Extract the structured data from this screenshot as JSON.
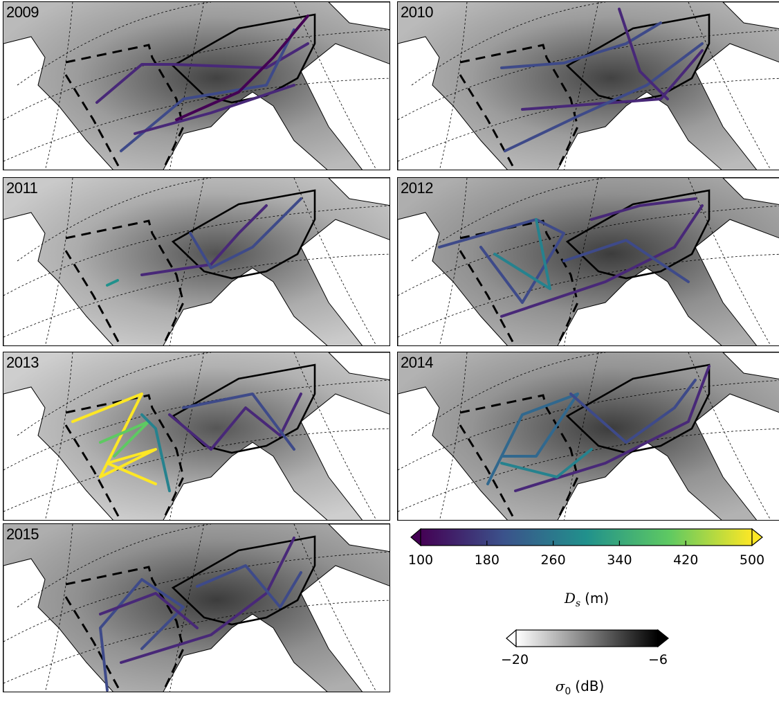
{
  "panels": [
    {
      "year": "2009",
      "tone": 0.55
    },
    {
      "year": "2010",
      "tone": 0.55
    },
    {
      "year": "2011",
      "tone": 0.35
    },
    {
      "year": "2012",
      "tone": 0.7
    },
    {
      "year": "2013",
      "tone": 0.3
    },
    {
      "year": "2014",
      "tone": 0.65
    },
    {
      "year": "2015",
      "tone": 0.7
    }
  ],
  "colorbar_ds": {
    "ticks": [
      "100",
      "180",
      "260",
      "340",
      "420",
      "500"
    ],
    "label_var": "D",
    "label_sub": "s",
    "label_unit": "(m)",
    "colors": [
      "#440154",
      "#3b528b",
      "#21918c",
      "#5ec962",
      "#fde725"
    ]
  },
  "colorbar_sigma": {
    "ticks": [
      "−20",
      "−6"
    ],
    "label_var": "σ",
    "label_sub": "0",
    "label_unit": "(dB)"
  },
  "tracks": [
    [
      [
        [
          135,
          145
        ],
        [
          200,
          90
        ],
        [
          245,
          90
        ],
        [
          380,
          95
        ],
        [
          440,
          60
        ]
      ],
      [
        [
          170,
          215
        ],
        [
          260,
          140
        ],
        [
          380,
          120
        ],
        [
          420,
          40
        ]
      ],
      [
        [
          190,
          190
        ],
        [
          300,
          160
        ],
        [
          420,
          120
        ]
      ],
      [
        [
          250,
          170
        ],
        [
          340,
          130
        ],
        [
          390,
          80
        ],
        [
          440,
          20
        ]
      ]
    ],
    [
      [
        [
          150,
          95
        ],
        [
          240,
          88
        ],
        [
          330,
          60
        ],
        [
          380,
          30
        ]
      ],
      [
        [
          180,
          155
        ],
        [
          380,
          140
        ],
        [
          440,
          70
        ]
      ],
      [
        [
          155,
          215
        ],
        [
          260,
          165
        ],
        [
          360,
          120
        ],
        [
          440,
          60
        ]
      ],
      [
        [
          320,
          10
        ],
        [
          350,
          100
        ],
        [
          390,
          140
        ]
      ]
    ],
    [
      [
        [
          200,
          140
        ],
        [
          300,
          125
        ],
        [
          340,
          80
        ],
        [
          380,
          40
        ]
      ],
      [
        [
          270,
          80
        ],
        [
          300,
          130
        ],
        [
          360,
          100
        ],
        [
          430,
          30
        ]
      ],
      [
        [
          150,
          155
        ],
        [
          165,
          148
        ]
      ]
    ],
    [
      [
        [
          60,
          100
        ],
        [
          200,
          60
        ],
        [
          240,
          80
        ],
        [
          180,
          180
        ],
        [
          120,
          100
        ]
      ],
      [
        [
          140,
          110
        ],
        [
          220,
          160
        ],
        [
          200,
          60
        ]
      ],
      [
        [
          150,
          200
        ],
        [
          300,
          150
        ],
        [
          400,
          100
        ],
        [
          440,
          40
        ]
      ],
      [
        [
          240,
          120
        ],
        [
          330,
          90
        ],
        [
          420,
          150
        ]
      ],
      [
        [
          280,
          60
        ],
        [
          350,
          40
        ],
        [
          430,
          30
        ]
      ]
    ],
    [
      [
        [
          100,
          100
        ],
        [
          200,
          60
        ],
        [
          140,
          180
        ],
        [
          220,
          140
        ],
        [
          150,
          160
        ],
        [
          220,
          190
        ]
      ],
      [
        [
          140,
          130
        ],
        [
          210,
          100
        ],
        [
          160,
          150
        ]
      ],
      [
        [
          240,
          90
        ],
        [
          300,
          140
        ],
        [
          350,
          80
        ],
        [
          400,
          120
        ],
        [
          430,
          60
        ]
      ],
      [
        [
          260,
          80
        ],
        [
          360,
          60
        ],
        [
          420,
          140
        ]
      ],
      [
        [
          200,
          90
        ],
        [
          220,
          110
        ],
        [
          240,
          200
        ]
      ]
    ],
    [
      [
        [
          130,
          190
        ],
        [
          180,
          90
        ],
        [
          260,
          60
        ],
        [
          200,
          150
        ],
        [
          150,
          150
        ]
      ],
      [
        [
          170,
          200
        ],
        [
          300,
          160
        ],
        [
          420,
          100
        ],
        [
          450,
          20
        ]
      ],
      [
        [
          250,
          60
        ],
        [
          330,
          130
        ],
        [
          400,
          80
        ],
        [
          430,
          40
        ]
      ],
      [
        [
          150,
          160
        ],
        [
          230,
          180
        ],
        [
          280,
          140
        ]
      ]
    ],
    [
      [
        [
          150,
          240
        ],
        [
          140,
          150
        ],
        [
          200,
          80
        ],
        [
          260,
          120
        ],
        [
          200,
          180
        ]
      ],
      [
        [
          140,
          130
        ],
        [
          220,
          100
        ],
        [
          280,
          150
        ]
      ],
      [
        [
          170,
          200
        ],
        [
          300,
          160
        ],
        [
          380,
          100
        ],
        [
          420,
          20
        ]
      ],
      [
        [
          280,
          90
        ],
        [
          350,
          60
        ],
        [
          400,
          120
        ],
        [
          430,
          70
        ]
      ]
    ]
  ],
  "track_colors": [
    [
      "#482878",
      "#3e4a89",
      "#482878",
      "#440154"
    ],
    [
      "#3e4a89",
      "#482878",
      "#3e4a89",
      "#482878"
    ],
    [
      "#482878",
      "#3e4a89",
      "#21918c"
    ],
    [
      "#3e4a89",
      "#26828e",
      "#482878",
      "#3e4a89",
      "#482878"
    ],
    [
      "#fde725",
      "#5ec962",
      "#482878",
      "#3e4a89",
      "#26828e"
    ],
    [
      "#31688e",
      "#482878",
      "#3e4a89",
      "#26828e"
    ],
    [
      "#3e4a89",
      "#482878",
      "#482878",
      "#3e4a89"
    ]
  ]
}
